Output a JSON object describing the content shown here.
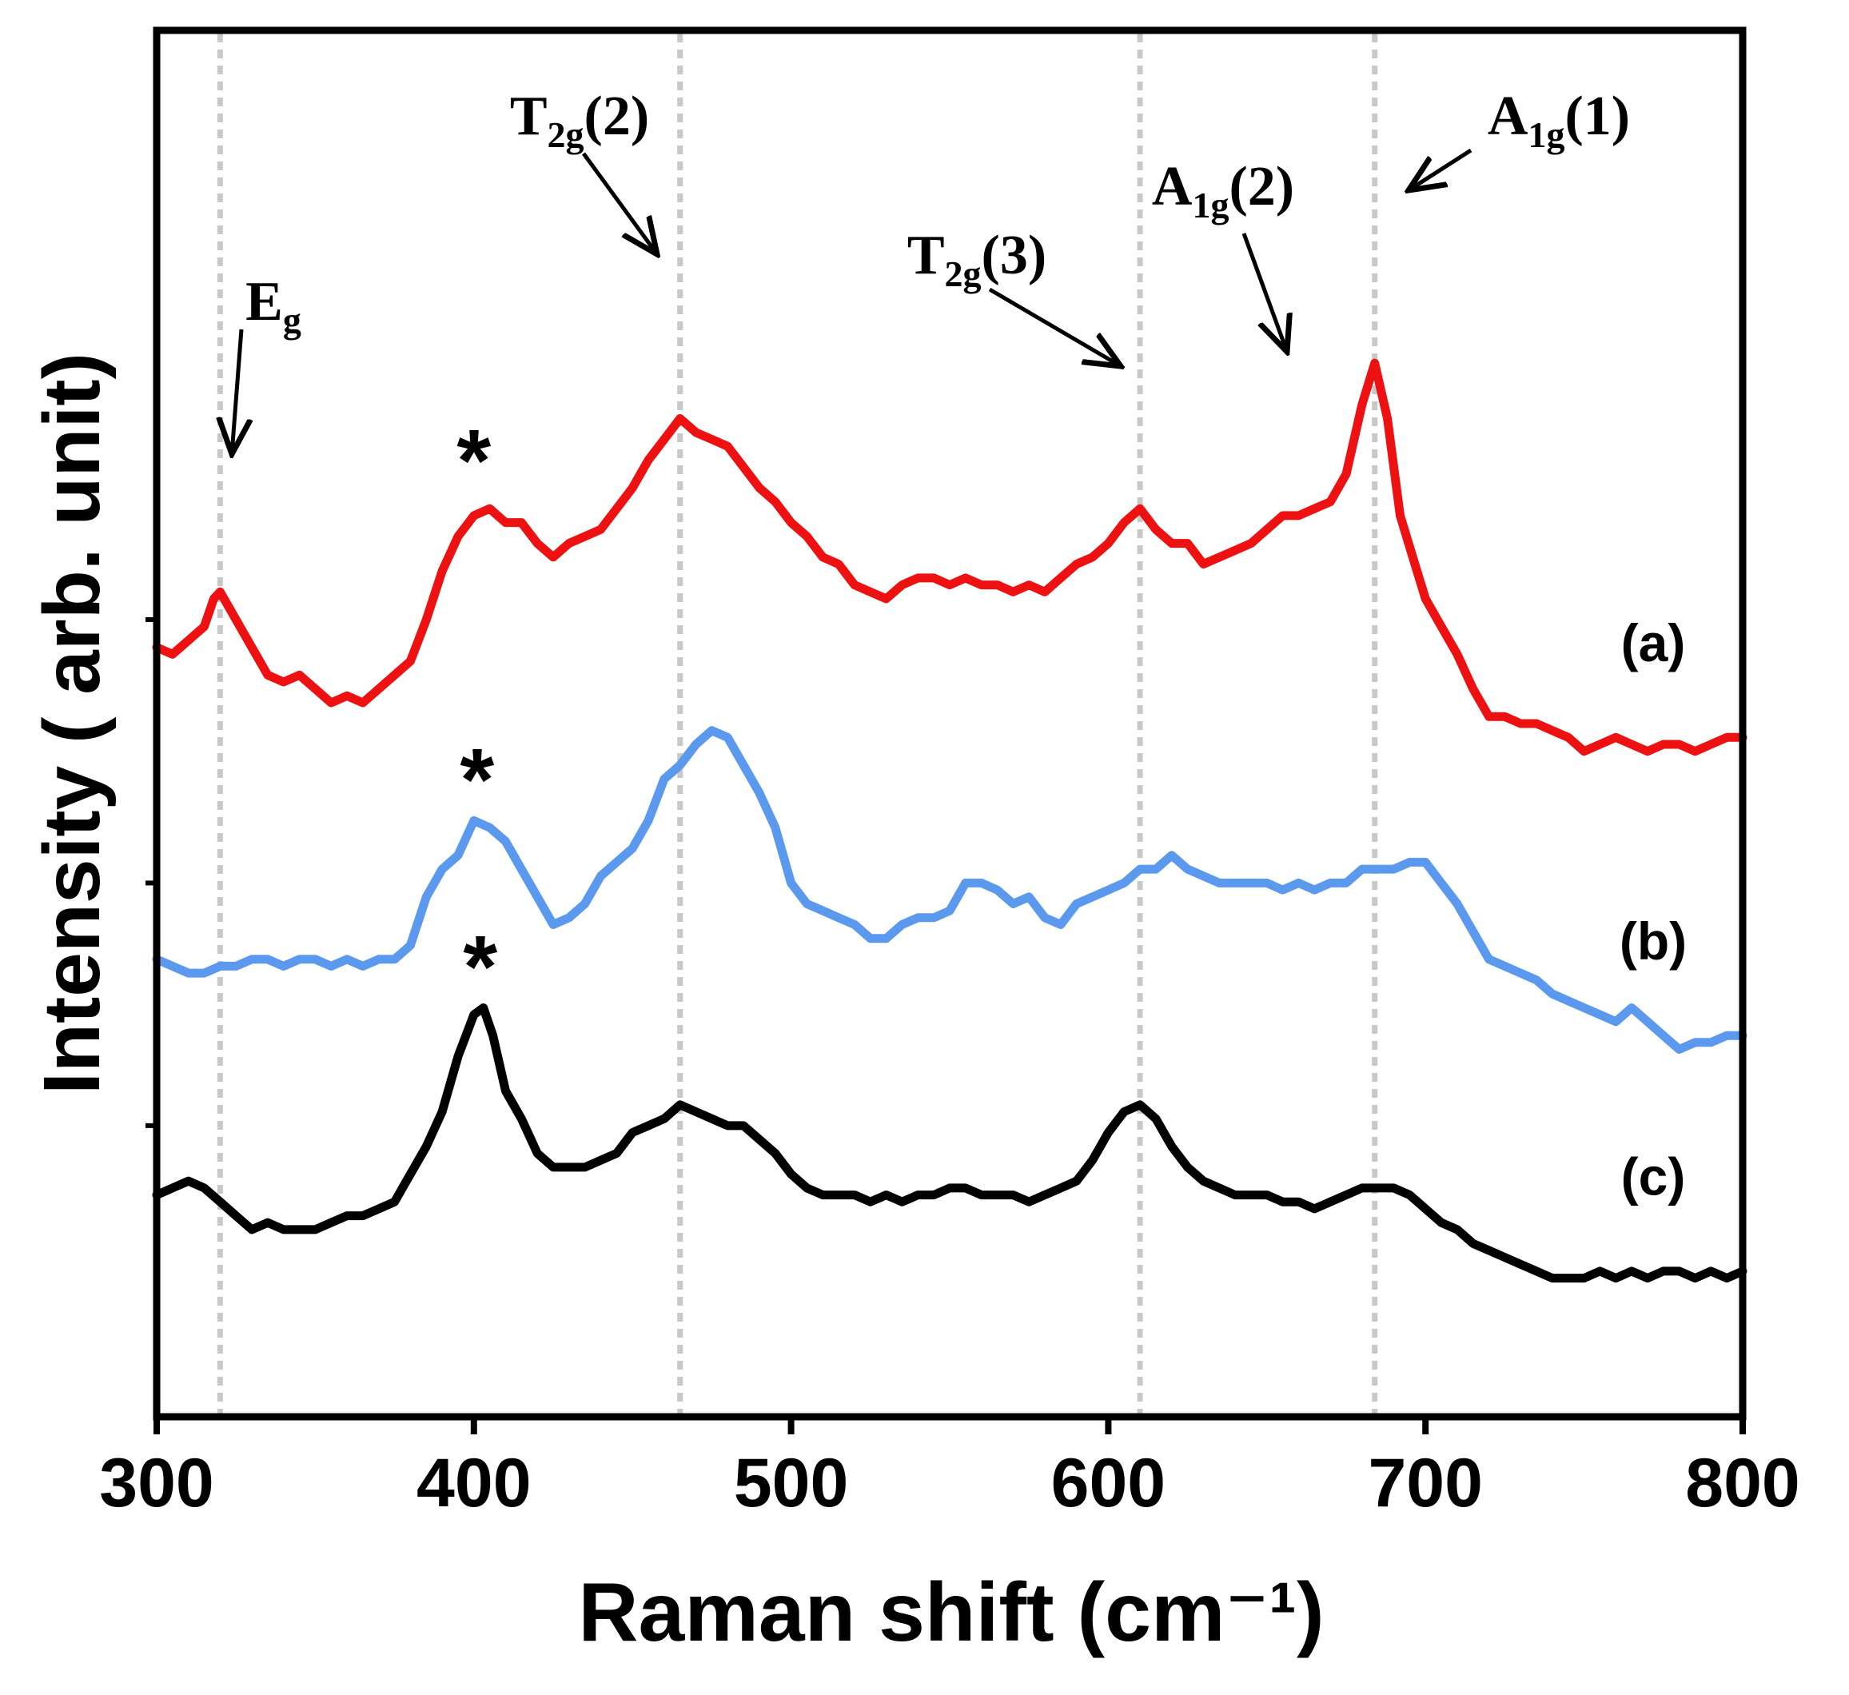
{
  "chart_data": {
    "type": "line",
    "title": "",
    "xlabel": "Raman shift (cm⁻¹)",
    "ylabel": "Intensity ( arb. unit)",
    "xlim": [
      300,
      800
    ],
    "ylim": [
      0,
      10
    ],
    "xticks": [
      300,
      400,
      500,
      600,
      700,
      800
    ],
    "yticks_unlabeled": [
      2.1,
      3.85,
      5.75
    ],
    "grid": false,
    "vertical_reference_lines": [
      320,
      465,
      610,
      684
    ],
    "series": [
      {
        "name": "(a)",
        "label": "(a)",
        "color": "#ee1111",
        "points": [
          [
            300,
            5.55
          ],
          [
            305,
            5.5
          ],
          [
            310,
            5.6
          ],
          [
            315,
            5.7
          ],
          [
            318,
            5.9
          ],
          [
            320,
            5.95
          ],
          [
            325,
            5.75
          ],
          [
            330,
            5.55
          ],
          [
            335,
            5.35
          ],
          [
            340,
            5.3
          ],
          [
            345,
            5.35
          ],
          [
            350,
            5.25
          ],
          [
            355,
            5.15
          ],
          [
            360,
            5.2
          ],
          [
            365,
            5.15
          ],
          [
            370,
            5.25
          ],
          [
            375,
            5.35
          ],
          [
            380,
            5.45
          ],
          [
            385,
            5.75
          ],
          [
            390,
            6.1
          ],
          [
            395,
            6.35
          ],
          [
            400,
            6.5
          ],
          [
            405,
            6.55
          ],
          [
            410,
            6.45
          ],
          [
            415,
            6.45
          ],
          [
            420,
            6.3
          ],
          [
            425,
            6.2
          ],
          [
            430,
            6.3
          ],
          [
            435,
            6.35
          ],
          [
            440,
            6.4
          ],
          [
            445,
            6.55
          ],
          [
            450,
            6.7
          ],
          [
            455,
            6.9
          ],
          [
            460,
            7.05
          ],
          [
            465,
            7.2
          ],
          [
            470,
            7.1
          ],
          [
            475,
            7.05
          ],
          [
            480,
            7.0
          ],
          [
            485,
            6.85
          ],
          [
            490,
            6.7
          ],
          [
            495,
            6.6
          ],
          [
            500,
            6.45
          ],
          [
            505,
            6.35
          ],
          [
            510,
            6.2
          ],
          [
            515,
            6.15
          ],
          [
            520,
            6.0
          ],
          [
            525,
            5.95
          ],
          [
            530,
            5.9
          ],
          [
            535,
            6.0
          ],
          [
            540,
            6.05
          ],
          [
            545,
            6.05
          ],
          [
            550,
            6.0
          ],
          [
            555,
            6.05
          ],
          [
            560,
            6.0
          ],
          [
            565,
            6.0
          ],
          [
            570,
            5.95
          ],
          [
            575,
            6.0
          ],
          [
            580,
            5.95
          ],
          [
            585,
            6.05
          ],
          [
            590,
            6.15
          ],
          [
            595,
            6.2
          ],
          [
            600,
            6.3
          ],
          [
            605,
            6.45
          ],
          [
            610,
            6.55
          ],
          [
            615,
            6.4
          ],
          [
            620,
            6.3
          ],
          [
            625,
            6.3
          ],
          [
            630,
            6.15
          ],
          [
            635,
            6.2
          ],
          [
            640,
            6.25
          ],
          [
            645,
            6.3
          ],
          [
            650,
            6.4
          ],
          [
            655,
            6.5
          ],
          [
            660,
            6.5
          ],
          [
            665,
            6.55
          ],
          [
            670,
            6.6
          ],
          [
            675,
            6.8
          ],
          [
            680,
            7.3
          ],
          [
            684,
            7.6
          ],
          [
            688,
            7.2
          ],
          [
            692,
            6.5
          ],
          [
            696,
            6.2
          ],
          [
            700,
            5.9
          ],
          [
            705,
            5.7
          ],
          [
            710,
            5.5
          ],
          [
            715,
            5.25
          ],
          [
            720,
            5.05
          ],
          [
            725,
            5.05
          ],
          [
            730,
            5.0
          ],
          [
            735,
            5.0
          ],
          [
            740,
            4.95
          ],
          [
            745,
            4.9
          ],
          [
            750,
            4.8
          ],
          [
            755,
            4.85
          ],
          [
            760,
            4.9
          ],
          [
            765,
            4.85
          ],
          [
            770,
            4.8
          ],
          [
            775,
            4.85
          ],
          [
            780,
            4.85
          ],
          [
            785,
            4.8
          ],
          [
            790,
            4.85
          ],
          [
            795,
            4.9
          ],
          [
            800,
            4.9
          ]
        ]
      },
      {
        "name": "(b)",
        "label": "(b)",
        "color": "#5b99ee",
        "points": [
          [
            300,
            3.3
          ],
          [
            305,
            3.25
          ],
          [
            310,
            3.2
          ],
          [
            315,
            3.2
          ],
          [
            320,
            3.25
          ],
          [
            325,
            3.25
          ],
          [
            330,
            3.3
          ],
          [
            335,
            3.3
          ],
          [
            340,
            3.25
          ],
          [
            345,
            3.3
          ],
          [
            350,
            3.3
          ],
          [
            355,
            3.25
          ],
          [
            360,
            3.3
          ],
          [
            365,
            3.25
          ],
          [
            370,
            3.3
          ],
          [
            375,
            3.3
          ],
          [
            380,
            3.4
          ],
          [
            385,
            3.75
          ],
          [
            390,
            3.95
          ],
          [
            395,
            4.05
          ],
          [
            400,
            4.3
          ],
          [
            405,
            4.25
          ],
          [
            410,
            4.15
          ],
          [
            415,
            3.95
          ],
          [
            420,
            3.75
          ],
          [
            425,
            3.55
          ],
          [
            430,
            3.6
          ],
          [
            435,
            3.7
          ],
          [
            440,
            3.9
          ],
          [
            445,
            4.0
          ],
          [
            450,
            4.1
          ],
          [
            455,
            4.3
          ],
          [
            460,
            4.6
          ],
          [
            465,
            4.7
          ],
          [
            470,
            4.85
          ],
          [
            475,
            4.95
          ],
          [
            480,
            4.9
          ],
          [
            485,
            4.7
          ],
          [
            490,
            4.5
          ],
          [
            495,
            4.25
          ],
          [
            500,
            3.85
          ],
          [
            505,
            3.7
          ],
          [
            510,
            3.65
          ],
          [
            515,
            3.6
          ],
          [
            520,
            3.55
          ],
          [
            525,
            3.45
          ],
          [
            530,
            3.45
          ],
          [
            535,
            3.55
          ],
          [
            540,
            3.6
          ],
          [
            545,
            3.6
          ],
          [
            550,
            3.65
          ],
          [
            555,
            3.85
          ],
          [
            560,
            3.85
          ],
          [
            565,
            3.8
          ],
          [
            570,
            3.7
          ],
          [
            575,
            3.75
          ],
          [
            580,
            3.6
          ],
          [
            585,
            3.55
          ],
          [
            590,
            3.7
          ],
          [
            595,
            3.75
          ],
          [
            600,
            3.8
          ],
          [
            605,
            3.85
          ],
          [
            610,
            3.95
          ],
          [
            615,
            3.95
          ],
          [
            620,
            4.05
          ],
          [
            625,
            3.95
          ],
          [
            630,
            3.9
          ],
          [
            635,
            3.85
          ],
          [
            640,
            3.85
          ],
          [
            645,
            3.85
          ],
          [
            650,
            3.85
          ],
          [
            655,
            3.8
          ],
          [
            660,
            3.85
          ],
          [
            665,
            3.8
          ],
          [
            670,
            3.85
          ],
          [
            675,
            3.85
          ],
          [
            680,
            3.95
          ],
          [
            685,
            3.95
          ],
          [
            690,
            3.95
          ],
          [
            695,
            4.0
          ],
          [
            700,
            4.0
          ],
          [
            705,
            3.85
          ],
          [
            710,
            3.7
          ],
          [
            715,
            3.5
          ],
          [
            720,
            3.3
          ],
          [
            725,
            3.25
          ],
          [
            730,
            3.2
          ],
          [
            735,
            3.15
          ],
          [
            740,
            3.05
          ],
          [
            745,
            3.0
          ],
          [
            750,
            2.95
          ],
          [
            755,
            2.9
          ],
          [
            760,
            2.85
          ],
          [
            765,
            2.95
          ],
          [
            770,
            2.85
          ],
          [
            775,
            2.75
          ],
          [
            780,
            2.65
          ],
          [
            785,
            2.7
          ],
          [
            790,
            2.7
          ],
          [
            795,
            2.75
          ],
          [
            800,
            2.75
          ]
        ]
      },
      {
        "name": "(c)",
        "label": "(c)",
        "color": "#000000",
        "points": [
          [
            300,
            1.6
          ],
          [
            305,
            1.65
          ],
          [
            310,
            1.7
          ],
          [
            315,
            1.65
          ],
          [
            320,
            1.55
          ],
          [
            325,
            1.45
          ],
          [
            330,
            1.35
          ],
          [
            335,
            1.4
          ],
          [
            340,
            1.35
          ],
          [
            345,
            1.35
          ],
          [
            350,
            1.35
          ],
          [
            355,
            1.4
          ],
          [
            360,
            1.45
          ],
          [
            365,
            1.45
          ],
          [
            370,
            1.5
          ],
          [
            375,
            1.55
          ],
          [
            380,
            1.75
          ],
          [
            385,
            1.95
          ],
          [
            390,
            2.2
          ],
          [
            395,
            2.6
          ],
          [
            400,
            2.9
          ],
          [
            403,
            2.95
          ],
          [
            406,
            2.75
          ],
          [
            410,
            2.35
          ],
          [
            415,
            2.15
          ],
          [
            420,
            1.9
          ],
          [
            425,
            1.8
          ],
          [
            430,
            1.8
          ],
          [
            435,
            1.8
          ],
          [
            440,
            1.85
          ],
          [
            445,
            1.9
          ],
          [
            450,
            2.05
          ],
          [
            455,
            2.1
          ],
          [
            460,
            2.15
          ],
          [
            465,
            2.25
          ],
          [
            470,
            2.2
          ],
          [
            475,
            2.15
          ],
          [
            480,
            2.1
          ],
          [
            485,
            2.1
          ],
          [
            490,
            2.0
          ],
          [
            495,
            1.9
          ],
          [
            500,
            1.75
          ],
          [
            505,
            1.65
          ],
          [
            510,
            1.6
          ],
          [
            515,
            1.6
          ],
          [
            520,
            1.6
          ],
          [
            525,
            1.55
          ],
          [
            530,
            1.6
          ],
          [
            535,
            1.55
          ],
          [
            540,
            1.6
          ],
          [
            545,
            1.6
          ],
          [
            550,
            1.65
          ],
          [
            555,
            1.65
          ],
          [
            560,
            1.6
          ],
          [
            565,
            1.6
          ],
          [
            570,
            1.6
          ],
          [
            575,
            1.55
          ],
          [
            580,
            1.6
          ],
          [
            585,
            1.65
          ],
          [
            590,
            1.7
          ],
          [
            595,
            1.85
          ],
          [
            600,
            2.05
          ],
          [
            605,
            2.2
          ],
          [
            610,
            2.25
          ],
          [
            615,
            2.15
          ],
          [
            620,
            1.95
          ],
          [
            625,
            1.8
          ],
          [
            630,
            1.7
          ],
          [
            635,
            1.65
          ],
          [
            640,
            1.6
          ],
          [
            645,
            1.6
          ],
          [
            650,
            1.6
          ],
          [
            655,
            1.55
          ],
          [
            660,
            1.55
          ],
          [
            665,
            1.5
          ],
          [
            670,
            1.55
          ],
          [
            675,
            1.6
          ],
          [
            680,
            1.65
          ],
          [
            685,
            1.65
          ],
          [
            690,
            1.65
          ],
          [
            695,
            1.6
          ],
          [
            700,
            1.5
          ],
          [
            705,
            1.4
          ],
          [
            710,
            1.35
          ],
          [
            715,
            1.25
          ],
          [
            720,
            1.2
          ],
          [
            725,
            1.15
          ],
          [
            730,
            1.1
          ],
          [
            735,
            1.05
          ],
          [
            740,
            1.0
          ],
          [
            745,
            1.0
          ],
          [
            750,
            1.0
          ],
          [
            755,
            1.05
          ],
          [
            760,
            1.0
          ],
          [
            765,
            1.05
          ],
          [
            770,
            1.0
          ],
          [
            775,
            1.05
          ],
          [
            780,
            1.05
          ],
          [
            785,
            1.0
          ],
          [
            790,
            1.05
          ],
          [
            795,
            1.0
          ],
          [
            800,
            1.05
          ]
        ]
      }
    ],
    "peak_annotations": [
      {
        "label": "E",
        "sub": "g",
        "suffix": "",
        "x": 320,
        "y": 5.95
      },
      {
        "label": "T",
        "sub": "2g",
        "suffix": "(2)",
        "x": 465,
        "y": 7.2
      },
      {
        "label": "T",
        "sub": "2g",
        "suffix": "(3)",
        "x": 610,
        "y": 6.55
      },
      {
        "label": "A",
        "sub": "1g",
        "suffix": "(2)",
        "x": 655,
        "y": 6.5
      },
      {
        "label": "A",
        "sub": "1g",
        "suffix": "(1)",
        "x": 684,
        "y": 7.6
      }
    ],
    "asterisk_markers": [
      {
        "text": "*",
        "x": 400,
        "y": 6.85
      },
      {
        "text": "*",
        "x": 401,
        "y": 4.55
      },
      {
        "text": "*",
        "x": 402,
        "y": 3.2
      }
    ]
  }
}
